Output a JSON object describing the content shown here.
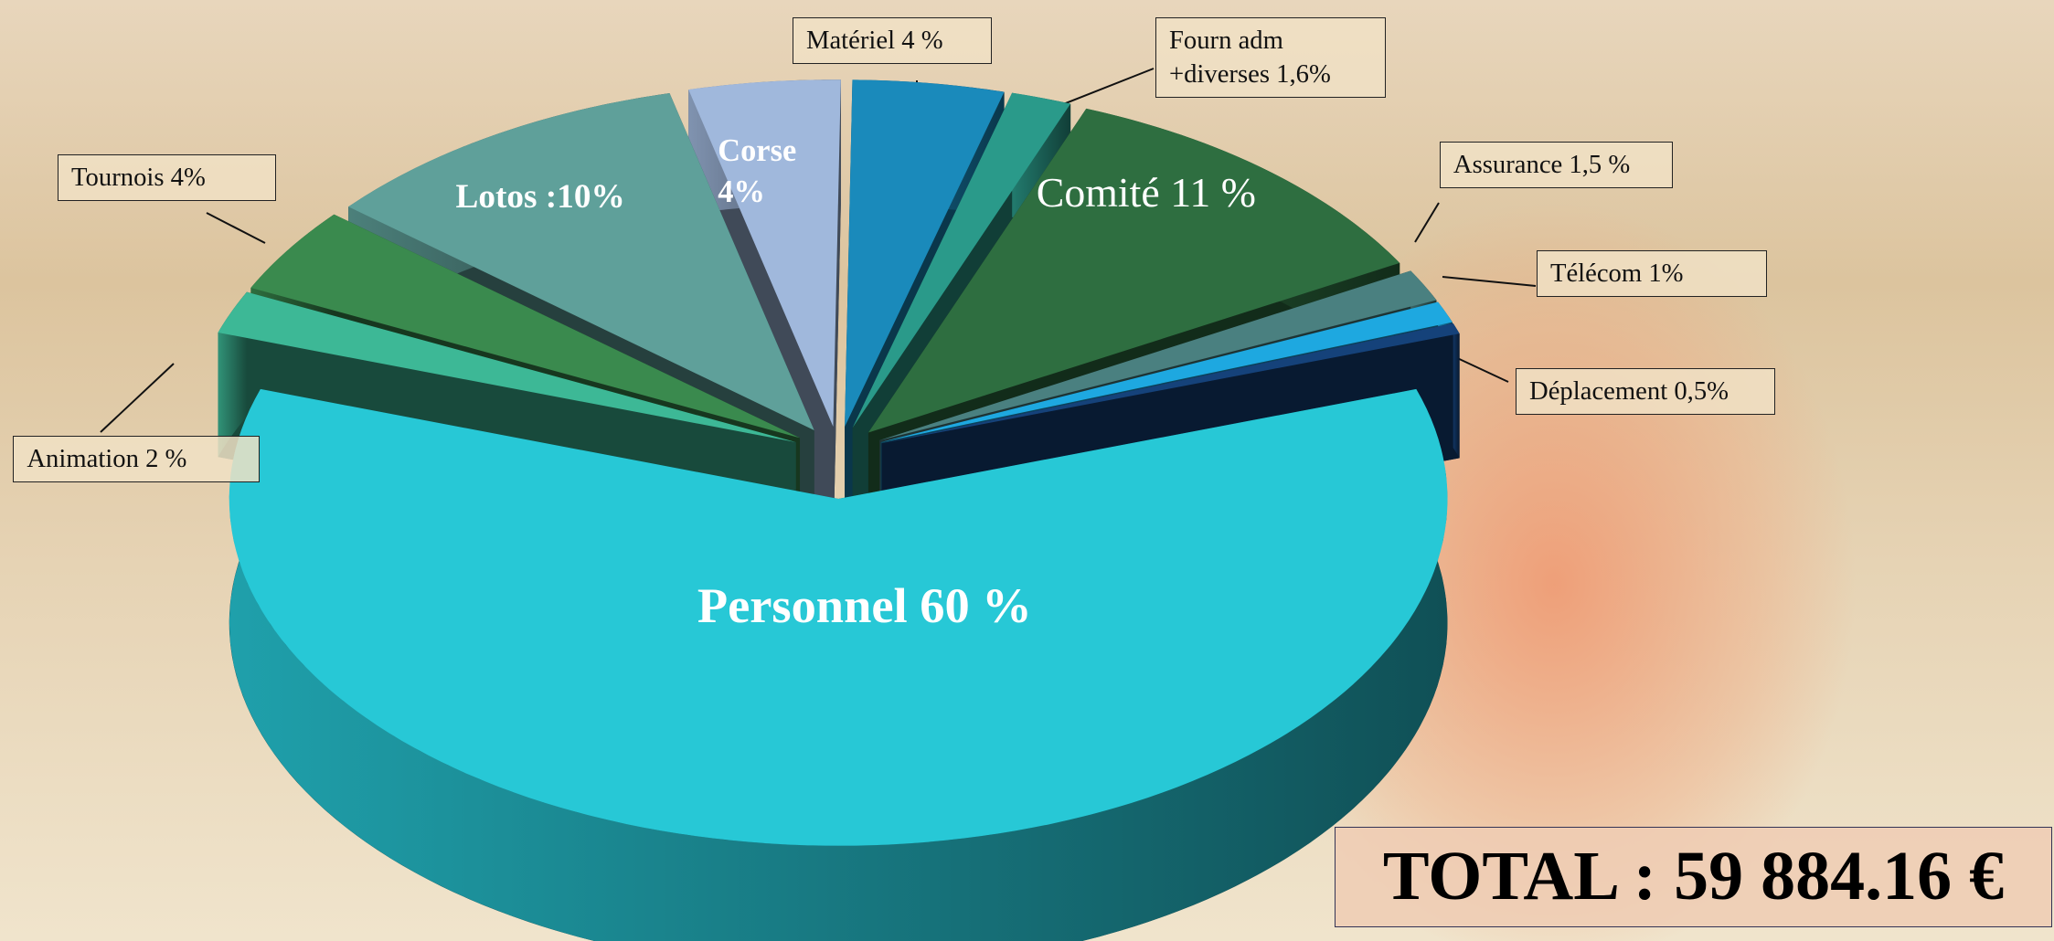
{
  "chart_data": {
    "type": "pie3d",
    "values": [
      4,
      1.6,
      11,
      1.5,
      1,
      0.5,
      60,
      2,
      4,
      10,
      4
    ],
    "value_labels": [
      "Matériel   4 %",
      "Fourn adm +diverses 1,6%",
      "Comité 11 %",
      "Assurance 1,5 %",
      "Télécom 1%",
      "Déplacement 0,5%",
      "Personnel  60 %",
      "Animation  2 %",
      "Tournois  4%",
      "Lotos :10%",
      "Corse 4%"
    ],
    "colors": [
      "#1a8abb",
      "#2a9a8a",
      "#2e6e40",
      "#4a8080",
      "#1ea8e0",
      "#15427a",
      "#27c8d6",
      "#3db896",
      "#3a8a4e",
      "#5fa09a",
      "#a0b8dc"
    ],
    "total": "TOTAL :  59 884.16 €"
  }
}
